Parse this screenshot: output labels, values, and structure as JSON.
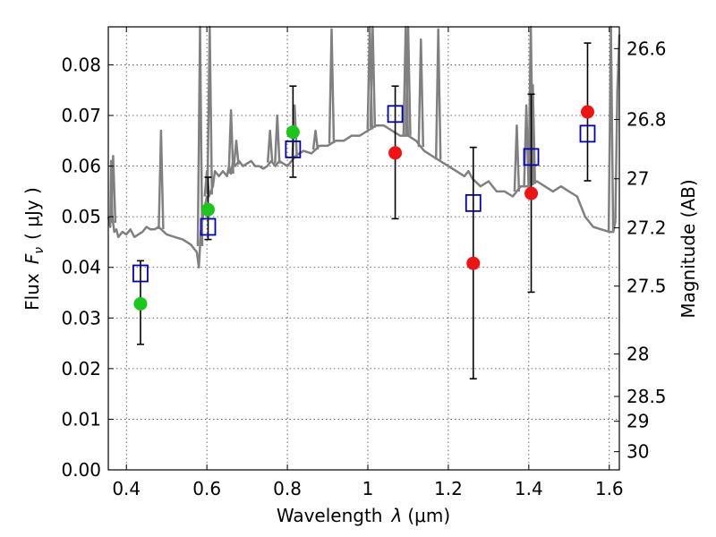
{
  "chart_data": {
    "type": "scatter",
    "title": "",
    "xlabel": "Wavelength",
    "xlabel_symbol": "λ",
    "xlabel_unit": "(μm)",
    "ylabel": "Flux",
    "ylabel_symbol": "F",
    "ylabel_symbol_sub": "ν",
    "ylabel_unit": "( μJy )",
    "y2label": "Magnitude (AB)",
    "xlim": [
      0.355,
      1.625
    ],
    "ylim": [
      0.0,
      0.0875
    ],
    "grid": true,
    "x_ticks": [
      0.4,
      0.6,
      0.8,
      1.0,
      1.2,
      1.4,
      1.6
    ],
    "x_tick_labels": [
      "0.4",
      "0.6",
      "0.8",
      "1",
      "1.2",
      "1.4",
      "1.6"
    ],
    "y_ticks": [
      0.0,
      0.01,
      0.02,
      0.03,
      0.04,
      0.05,
      0.06,
      0.07,
      0.08
    ],
    "y_tick_labels": [
      "0.00",
      "0.01",
      "0.02",
      "0.03",
      "0.04",
      "0.05",
      "0.06",
      "0.07",
      "0.08"
    ],
    "y2_ticks": [
      {
        "label": "26.6",
        "flux": 0.0832
      },
      {
        "label": "26.8",
        "flux": 0.0692
      },
      {
        "label": "27",
        "flux": 0.0575
      },
      {
        "label": "27.2",
        "flux": 0.0478
      },
      {
        "label": "27.5",
        "flux": 0.0363
      },
      {
        "label": "28",
        "flux": 0.0229
      },
      {
        "label": "28.5",
        "flux": 0.0145
      },
      {
        "label": "29",
        "flux": 0.0096
      },
      {
        "label": "30",
        "flux": 0.0036
      }
    ],
    "colors": {
      "model": "#808080",
      "green_obs": "#19c819",
      "red_obs": "#f21212",
      "model_photometry": "#0000c0",
      "errorbar": "#000000"
    },
    "series": [
      {
        "kind": "spectrum",
        "x": [
          0.355,
          0.36,
          0.362,
          0.365,
          0.37,
          0.375,
          0.38,
          0.39,
          0.4,
          0.41,
          0.42,
          0.43,
          0.44,
          0.45,
          0.46,
          0.47,
          0.48,
          0.5,
          0.52,
          0.54,
          0.56,
          0.575,
          0.58,
          0.585,
          0.59,
          0.595,
          0.6,
          0.605,
          0.61,
          0.615,
          0.62,
          0.63,
          0.64,
          0.65,
          0.655,
          0.66,
          0.665,
          0.67,
          0.68,
          0.69,
          0.7,
          0.71,
          0.72,
          0.73,
          0.74,
          0.75,
          0.76,
          0.77,
          0.78,
          0.8,
          0.82,
          0.84,
          0.86,
          0.88,
          0.9,
          0.92,
          0.94,
          0.96,
          0.98,
          1.0,
          1.02,
          1.04,
          1.06,
          1.08,
          1.1,
          1.12,
          1.14,
          1.16,
          1.18,
          1.2,
          1.22,
          1.24,
          1.25,
          1.26,
          1.28,
          1.3,
          1.32,
          1.34,
          1.36,
          1.38,
          1.4,
          1.42,
          1.44,
          1.46,
          1.48,
          1.5,
          1.52,
          1.54,
          1.56,
          1.58,
          1.6,
          1.61,
          1.615,
          1.62,
          1.625
        ],
        "y": [
          0.05,
          0.048,
          0.061,
          0.05,
          0.047,
          0.0475,
          0.046,
          0.047,
          0.0465,
          0.0475,
          0.046,
          0.0465,
          0.047,
          0.048,
          0.0475,
          0.0475,
          0.048,
          0.0465,
          0.046,
          0.0455,
          0.0445,
          0.043,
          0.04,
          0.047,
          0.05,
          0.052,
          0.054,
          0.054,
          0.055,
          0.056,
          0.059,
          0.058,
          0.059,
          0.058,
          0.06,
          0.0585,
          0.061,
          0.06,
          0.061,
          0.06,
          0.0605,
          0.061,
          0.06,
          0.06,
          0.0595,
          0.06,
          0.061,
          0.06,
          0.061,
          0.06,
          0.062,
          0.063,
          0.0625,
          0.064,
          0.064,
          0.065,
          0.065,
          0.066,
          0.066,
          0.067,
          0.068,
          0.068,
          0.067,
          0.066,
          0.066,
          0.065,
          0.063,
          0.062,
          0.061,
          0.06,
          0.059,
          0.058,
          0.059,
          0.0575,
          0.056,
          0.057,
          0.055,
          0.055,
          0.054,
          0.056,
          0.056,
          0.057,
          0.056,
          0.055,
          0.056,
          0.055,
          0.054,
          0.05,
          0.048,
          0.0475,
          0.047,
          0.047,
          0.049,
          0.075,
          0.086
        ]
      },
      {
        "kind": "spectrum-emission-lines",
        "x": [
          0.367,
          0.486,
          0.583,
          0.6,
          0.607,
          0.66,
          0.673,
          0.757,
          0.775,
          0.818,
          0.87,
          0.91,
          1.005,
          1.012,
          1.094,
          1.1,
          1.132,
          1.175,
          1.37,
          1.394,
          1.405,
          1.41,
          1.604
        ],
        "y": [
          0.062,
          0.067,
          0.0875,
          0.059,
          0.0875,
          0.071,
          0.065,
          0.067,
          0.07,
          0.072,
          0.067,
          0.087,
          0.0875,
          0.0875,
          0.0875,
          0.0875,
          0.085,
          0.087,
          0.068,
          0.072,
          0.0875,
          0.076,
          0.0875
        ]
      },
      {
        "kind": "observed-green",
        "x": [
          0.435,
          0.603,
          0.814
        ],
        "y": [
          0.0328,
          0.0514,
          0.0667
        ],
        "err_low": [
          0.0248,
          0.0455,
          0.0578
        ],
        "err_high": [
          0.0413,
          0.0578,
          0.0758
        ]
      },
      {
        "kind": "observed-red",
        "x": [
          1.068,
          1.262,
          1.406,
          1.546
        ],
        "y": [
          0.0626,
          0.0408,
          0.0546,
          0.0707
        ],
        "err_low": [
          0.0496,
          0.018,
          0.0351,
          0.0571
        ],
        "err_high": [
          0.0758,
          0.0637,
          0.0742,
          0.0843
        ]
      },
      {
        "kind": "model-photometry",
        "x": [
          0.435,
          0.603,
          0.814,
          1.068,
          1.262,
          1.406,
          1.546
        ],
        "y": [
          0.0388,
          0.048,
          0.0633,
          0.0703,
          0.0527,
          0.0618,
          0.0664
        ]
      }
    ]
  }
}
